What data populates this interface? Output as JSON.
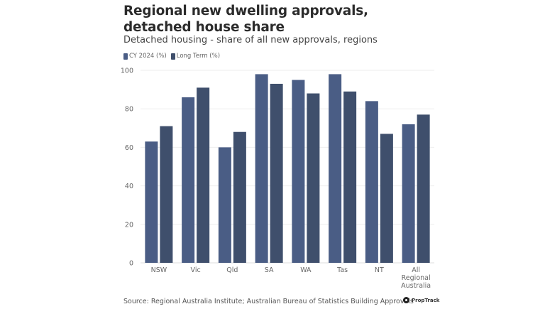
{
  "header": {
    "title": "Regional new dwelling approvals, detached house share",
    "subtitle": "Detached housing - share of all new approvals, regions"
  },
  "footer": {
    "source": "Source: Regional Australia Institute; Australian Bureau of Statistics Building Approvals",
    "logo_text": "PropTrack"
  },
  "chart_data": {
    "type": "bar",
    "title": "Regional new dwelling approvals, detached house share",
    "subtitle": "Detached housing - share of all new approvals, regions",
    "xlabel": "",
    "ylabel": "",
    "categories": [
      "NSW",
      "Vic",
      "Qld",
      "SA",
      "WA",
      "Tas",
      "NT",
      "All Regional Australia"
    ],
    "series": [
      {
        "name": "CY 2024 (%)",
        "color": "#4a5d85",
        "values": [
          63,
          86,
          60,
          98,
          95,
          98,
          84,
          72
        ]
      },
      {
        "name": "Long Term (%)",
        "color": "#3f4f6c",
        "values": [
          71,
          91,
          68,
          93,
          88,
          89,
          67,
          77
        ]
      }
    ],
    "ylim": [
      0,
      100
    ],
    "yticks": [
      0,
      20,
      40,
      60,
      80,
      100
    ],
    "grid": true,
    "legend": "top-left"
  }
}
